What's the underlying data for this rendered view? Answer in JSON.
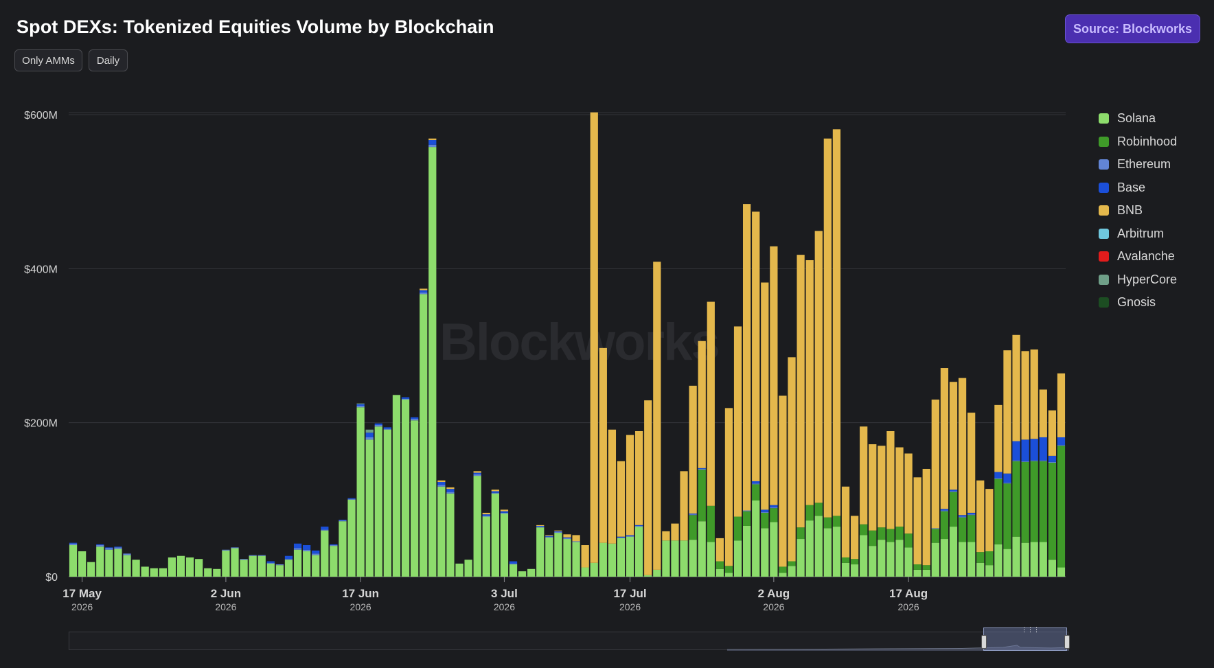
{
  "header": {
    "title": "Spot DEXs: Tokenized Equities Volume by Blockchain",
    "source_label": "Source: Blockworks",
    "filters": [
      "Only AMMs",
      "Daily"
    ]
  },
  "watermark": "Blockworks",
  "colors": {
    "background": "#1b1c1f",
    "grid": "#33343a",
    "accent": "#4b2fb0",
    "Solana": "#8ddc6c",
    "Robinhood": "#3f9a29",
    "Ethereum": "#6285d6",
    "Base": "#1b4fd8",
    "BNB": "#e4b84c",
    "Arbitrum": "#6fc7dd",
    "Avalanche": "#e21c1c",
    "HyperCore": "#6f9f88",
    "Gnosis": "#1c4d22"
  },
  "chart_data": {
    "type": "bar",
    "stacked": true,
    "start_date": "2026-05-16",
    "ylim": [
      0,
      600
    ],
    "y_ticks": [
      0,
      200,
      400,
      600
    ],
    "y_tick_labels": [
      "$0",
      "$200M",
      "$400M",
      "$600M"
    ],
    "x_ticks": [
      {
        "date": "2026-05-17",
        "label": "17 May",
        "year": "2026"
      },
      {
        "date": "2026-06-02",
        "label": "2 Jun",
        "year": "2026"
      },
      {
        "date": "2026-06-17",
        "label": "17 Jun",
        "year": "2026"
      },
      {
        "date": "2026-07-03",
        "label": "3 Jul",
        "year": "2026"
      },
      {
        "date": "2026-07-17",
        "label": "17 Jul",
        "year": "2026"
      },
      {
        "date": "2026-08-02",
        "label": "2 Aug",
        "year": "2026"
      },
      {
        "date": "2026-08-17",
        "label": "17 Aug",
        "year": "2026"
      }
    ],
    "series": [
      {
        "name": "Solana",
        "values": [
          41,
          33,
          19,
          39,
          35,
          36,
          28,
          22,
          13,
          11,
          11,
          25,
          27,
          25,
          23,
          11,
          10,
          34,
          37,
          22,
          27,
          27,
          17,
          15,
          22,
          35,
          33,
          28,
          60,
          40,
          72,
          100,
          220,
          178,
          195,
          191,
          236,
          230,
          203,
          367,
          558,
          117,
          108,
          17,
          22,
          131,
          78,
          108,
          82,
          16,
          7,
          10,
          64,
          51,
          57,
          49,
          45,
          12,
          18,
          44,
          43,
          50,
          52,
          65,
          2,
          9,
          47,
          47,
          47,
          48,
          72,
          45,
          10,
          5,
          47,
          66,
          99,
          63,
          71,
          5,
          14,
          49,
          73,
          79,
          63,
          65,
          18,
          16,
          54,
          40,
          48,
          45,
          48,
          38,
          9,
          9,
          44,
          49,
          65,
          45,
          45,
          18,
          15,
          42,
          36,
          52,
          44,
          45,
          45,
          22,
          12
        ],
        "values_sum": "unused"
      },
      {
        "name": "Robinhood",
        "values": [
          0,
          0,
          0,
          0,
          0,
          0,
          0,
          0,
          0,
          0,
          0,
          0,
          0,
          0,
          0,
          0,
          0,
          0,
          0,
          0,
          0,
          0,
          0,
          0,
          0,
          0,
          0,
          0,
          0,
          0,
          0,
          0,
          0,
          0,
          0,
          0,
          0,
          0,
          0,
          0,
          0,
          0,
          0,
          0,
          0,
          0,
          0,
          0,
          0,
          0,
          0,
          0,
          0,
          0,
          0,
          0,
          0,
          0,
          0,
          0,
          0,
          0,
          0,
          0,
          0,
          0,
          0,
          0,
          0,
          32,
          67,
          47,
          10,
          9,
          31,
          19,
          21,
          20,
          18,
          8,
          6,
          15,
          20,
          17,
          14,
          14,
          7,
          7,
          14,
          20,
          16,
          17,
          17,
          18,
          7,
          6,
          18,
          36,
          45,
          32,
          35,
          14,
          18,
          85,
          85,
          98,
          105,
          105,
          105,
          126,
          158
        ]
      },
      {
        "name": "Ethereum",
        "values": [
          2,
          0,
          0,
          2,
          2,
          2,
          2,
          0,
          0,
          0,
          0,
          0,
          0,
          0,
          0,
          0,
          0,
          1,
          1,
          1,
          1,
          1,
          1,
          1,
          1,
          2,
          2,
          2,
          1,
          1,
          1,
          1,
          2,
          3,
          2,
          1,
          0,
          1,
          2,
          2,
          3,
          2,
          2,
          0,
          0,
          2,
          1,
          1,
          1,
          1,
          0,
          0,
          1,
          1,
          1,
          1,
          1,
          0,
          0,
          0,
          0,
          1,
          1,
          1,
          0,
          0,
          0,
          0,
          0,
          1,
          1,
          0,
          0,
          0,
          0,
          1,
          1,
          1,
          1,
          0,
          0,
          0,
          0,
          0,
          0,
          0,
          0,
          0,
          0,
          0,
          0,
          0,
          0,
          0,
          0,
          0,
          1,
          1,
          1,
          1,
          1,
          0,
          0,
          1,
          1,
          1,
          1,
          1,
          1,
          1,
          1
        ]
      },
      {
        "name": "Base",
        "values": [
          1,
          0,
          0,
          1,
          1,
          1,
          0,
          0,
          0,
          0,
          0,
          0,
          0,
          0,
          0,
          0,
          0,
          0,
          0,
          0,
          0,
          0,
          2,
          0,
          4,
          6,
          6,
          4,
          4,
          1,
          1,
          1,
          2,
          6,
          2,
          2,
          0,
          2,
          2,
          3,
          6,
          4,
          4,
          0,
          0,
          2,
          2,
          2,
          2,
          3,
          0,
          0,
          1,
          1,
          1,
          1,
          0,
          0,
          0,
          0,
          0,
          1,
          1,
          1,
          0,
          0,
          0,
          0,
          0,
          1,
          1,
          0,
          0,
          0,
          0,
          0,
          3,
          3,
          3,
          0,
          0,
          0,
          0,
          0,
          0,
          0,
          0,
          0,
          0,
          0,
          0,
          0,
          0,
          0,
          0,
          0,
          0,
          2,
          2,
          2,
          2,
          0,
          0,
          8,
          12,
          25,
          28,
          28,
          30,
          8,
          10
        ]
      },
      {
        "name": "BNB",
        "values": [
          0,
          0,
          0,
          0,
          0,
          0,
          0,
          0,
          0,
          0,
          0,
          0,
          0,
          0,
          0,
          0,
          0,
          0,
          0,
          0,
          0,
          0,
          0,
          0,
          0,
          0,
          0,
          0,
          0,
          0,
          0,
          0,
          0,
          0,
          0,
          0,
          0,
          0,
          0,
          2,
          2,
          2,
          2,
          0,
          0,
          2,
          2,
          2,
          2,
          0,
          0,
          0,
          1,
          1,
          1,
          4,
          8,
          29,
          585,
          253,
          148,
          98,
          130,
          122,
          227,
          400,
          12,
          22,
          90,
          166,
          165,
          265,
          30,
          205,
          247,
          398,
          350,
          295,
          336,
          222,
          265,
          354,
          318,
          353,
          492,
          502,
          92,
          56,
          127,
          112,
          106,
          127,
          103,
          104,
          113,
          125,
          167,
          183,
          140,
          178,
          130,
          93,
          81,
          87,
          160,
          138,
          115,
          116,
          62,
          59,
          83
        ]
      },
      {
        "name": "Arbitrum",
        "values": [
          0,
          0,
          0,
          0,
          0,
          0,
          0,
          0,
          0,
          0,
          0,
          0,
          0,
          0,
          0,
          0,
          0,
          0,
          0,
          0,
          0,
          0,
          0,
          0,
          0,
          0,
          0,
          0,
          0,
          0,
          0,
          0,
          0,
          0,
          0,
          0,
          0,
          0,
          0,
          0,
          0,
          0,
          0,
          0,
          0,
          0,
          0,
          0,
          0,
          0,
          0,
          0,
          0,
          0,
          0,
          0,
          0,
          0,
          0,
          0,
          0,
          0,
          0,
          0,
          0,
          0,
          0,
          0,
          0,
          0,
          0,
          0,
          0,
          0,
          0,
          0,
          0,
          0,
          0,
          0,
          0,
          0,
          0,
          0,
          0,
          0,
          0,
          0,
          0,
          0,
          0,
          0,
          0,
          0,
          0,
          0,
          0,
          0,
          0,
          0,
          0,
          0,
          0,
          0,
          0,
          0,
          0,
          0,
          0,
          0,
          0
        ]
      },
      {
        "name": "Avalanche",
        "values": [
          0,
          0,
          0,
          0,
          0,
          0,
          0,
          0,
          0,
          0,
          0,
          0,
          0,
          0,
          0,
          0,
          0,
          0,
          0,
          0,
          0,
          0,
          0,
          0,
          0,
          0,
          0,
          0,
          0,
          0,
          0,
          0,
          0,
          0,
          0,
          0,
          0,
          0,
          0,
          0,
          0,
          0,
          0,
          0,
          0,
          0,
          0,
          0,
          0,
          0,
          0,
          0,
          0,
          0,
          0,
          0,
          0,
          0,
          0,
          0,
          0,
          0,
          0,
          0,
          0,
          0,
          0,
          0,
          0,
          0,
          0,
          0,
          0,
          0,
          0,
          0,
          0,
          0,
          0,
          0,
          0,
          0,
          0,
          0,
          0,
          0,
          0,
          0,
          0,
          0,
          0,
          0,
          0,
          0,
          0,
          0,
          0,
          0,
          0,
          0,
          0,
          0,
          0,
          0,
          0,
          0,
          0,
          0,
          0,
          0,
          0
        ]
      },
      {
        "name": "HyperCore",
        "values": [
          0,
          0,
          0,
          0,
          0,
          0,
          0,
          0,
          0,
          0,
          0,
          0,
          0,
          0,
          0,
          0,
          0,
          0,
          0,
          0,
          0,
          0,
          0,
          0,
          0,
          0,
          0,
          0,
          0,
          0,
          0,
          0,
          1,
          4,
          0,
          0,
          0,
          0,
          0,
          0,
          0,
          0,
          0,
          0,
          0,
          0,
          0,
          0,
          0,
          0,
          0,
          0,
          0,
          0,
          0,
          0,
          0,
          0,
          0,
          0,
          0,
          0,
          0,
          0,
          0,
          0,
          0,
          0,
          0,
          0,
          0,
          0,
          0,
          0,
          0,
          0,
          0,
          0,
          0,
          0,
          0,
          0,
          0,
          0,
          0,
          0,
          0,
          0,
          0,
          0,
          0,
          0,
          0,
          0,
          0,
          0,
          0,
          0,
          0,
          0,
          0,
          0,
          0,
          0,
          0,
          0,
          0,
          0,
          0,
          0,
          0
        ]
      },
      {
        "name": "Gnosis",
        "values": [
          0,
          0,
          0,
          0,
          0,
          0,
          0,
          0,
          0,
          0,
          0,
          0,
          0,
          0,
          0,
          0,
          0,
          0,
          0,
          0,
          0,
          0,
          0,
          0,
          0,
          0,
          0,
          0,
          0,
          0,
          0,
          0,
          0,
          0,
          0,
          0,
          0,
          0,
          0,
          0,
          0,
          0,
          0,
          0,
          0,
          0,
          0,
          0,
          0,
          0,
          0,
          0,
          0,
          0,
          0,
          0,
          0,
          0,
          0,
          0,
          0,
          0,
          0,
          0,
          0,
          0,
          0,
          0,
          0,
          0,
          0,
          0,
          0,
          0,
          0,
          0,
          0,
          0,
          0,
          0,
          0,
          0,
          0,
          0,
          0,
          0,
          0,
          0,
          0,
          0,
          0,
          0,
          0,
          0,
          0,
          0,
          0,
          0,
          0,
          0,
          0,
          0,
          0,
          0,
          0,
          0,
          0,
          0,
          0,
          0,
          0
        ]
      }
    ],
    "legend_position": "right",
    "grid": true
  }
}
